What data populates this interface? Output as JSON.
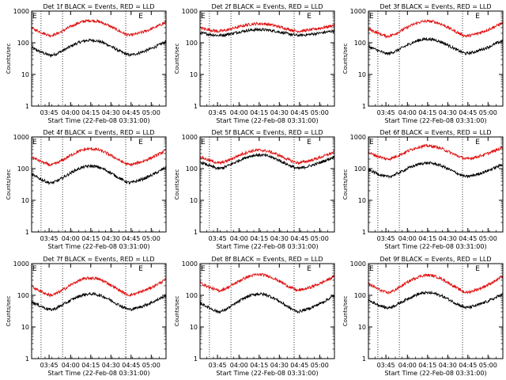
{
  "colors": {
    "events": "#000000",
    "lld": "#e01010",
    "axes": "#000000"
  },
  "chart_data": [
    {
      "type": "line",
      "title": "Det 1f BLACK = Events, RED = LLD",
      "xlabel": "Start Time (22-Feb-08 03:31:00)",
      "ylabel": "Counts/sec",
      "yscale": "log",
      "ylim": [
        1,
        1000
      ],
      "yticks": [
        "1",
        "10",
        "100",
        "1000"
      ],
      "xticks": [
        "03:45",
        "04:00",
        "04:15",
        "04:30",
        "04:45",
        "05:00"
      ],
      "xtick_minutes": [
        224,
        240,
        255,
        270,
        285,
        300
      ],
      "xlim_minutes": [
        211,
        311
      ],
      "event_lines_minutes": [
        218,
        234,
        281
      ],
      "markers": [
        {
          "label": "E",
          "minute": 211
        },
        {
          "label": "E",
          "minute": 290
        }
      ],
      "series": [
        {
          "name": "Events",
          "min": 40,
          "peak": 120,
          "end": 110
        },
        {
          "name": "LLD",
          "min": 170,
          "peak": 500,
          "end": 450
        }
      ]
    },
    {
      "type": "line",
      "title": "Det 2f BLACK = Events, RED = LLD",
      "xlabel": "Start Time (22-Feb-08 03:31:00)",
      "ylabel": "Counts/sec",
      "yscale": "log",
      "ylim": [
        1,
        1000
      ],
      "yticks": [
        "1",
        "10",
        "100",
        "1000"
      ],
      "xticks": [
        "03:45",
        "04:00",
        "04:15",
        "04:30",
        "04:45",
        "05:00"
      ],
      "xtick_minutes": [
        224,
        240,
        255,
        270,
        285,
        300
      ],
      "xlim_minutes": [
        211,
        311
      ],
      "event_lines_minutes": [
        218,
        234,
        281
      ],
      "markers": [
        {
          "label": "E",
          "minute": 211
        },
        {
          "label": "E",
          "minute": 290
        }
      ],
      "series": [
        {
          "name": "Events",
          "min": 170,
          "peak": 260,
          "end": 240
        },
        {
          "name": "LLD",
          "min": 230,
          "peak": 400,
          "end": 360
        }
      ]
    },
    {
      "type": "line",
      "title": "Det 3f BLACK = Events, RED = LLD",
      "xlabel": "Start Time (22-Feb-08 03:31:00)",
      "ylabel": "Counts/sec",
      "yscale": "log",
      "ylim": [
        1,
        1000
      ],
      "yticks": [
        "1",
        "10",
        "100",
        "1000"
      ],
      "xticks": [
        "03:45",
        "04:00",
        "04:15",
        "04:30",
        "04:45",
        "05:00"
      ],
      "xtick_minutes": [
        224,
        240,
        255,
        270,
        285,
        300
      ],
      "xlim_minutes": [
        211,
        311
      ],
      "event_lines_minutes": [
        218,
        234,
        281
      ],
      "markers": [
        {
          "label": "E",
          "minute": 211
        },
        {
          "label": "E",
          "minute": 290
        }
      ],
      "series": [
        {
          "name": "Events",
          "min": 45,
          "peak": 130,
          "end": 120
        },
        {
          "name": "LLD",
          "min": 160,
          "peak": 480,
          "end": 430
        }
      ]
    },
    {
      "type": "line",
      "title": "Det 4f BLACK = Events, RED = LLD",
      "xlabel": "Start Time (22-Feb-08 03:31:00)",
      "ylabel": "Counts/sec",
      "yscale": "log",
      "ylim": [
        1,
        1000
      ],
      "yticks": [
        "1",
        "10",
        "100",
        "1000"
      ],
      "xticks": [
        "03:45",
        "04:00",
        "04:15",
        "04:30",
        "04:45",
        "05:00"
      ],
      "xtick_minutes": [
        224,
        240,
        255,
        270,
        285,
        300
      ],
      "xlim_minutes": [
        211,
        311
      ],
      "event_lines_minutes": [
        218,
        234,
        281
      ],
      "markers": [
        {
          "label": "E",
          "minute": 211
        },
        {
          "label": "E",
          "minute": 290
        }
      ],
      "series": [
        {
          "name": "Events",
          "min": 35,
          "peak": 120,
          "end": 110
        },
        {
          "name": "LLD",
          "min": 130,
          "peak": 420,
          "end": 380
        }
      ]
    },
    {
      "type": "line",
      "title": "Det 5f BLACK = Events, RED = LLD",
      "xlabel": "Start Time (22-Feb-08 03:31:00)",
      "ylabel": "Counts/sec",
      "yscale": "log",
      "ylim": [
        1,
        1000
      ],
      "yticks": [
        "1",
        "10",
        "100",
        "1000"
      ],
      "xticks": [
        "03:45",
        "04:00",
        "04:15",
        "04:30",
        "04:45",
        "05:00"
      ],
      "xtick_minutes": [
        224,
        240,
        255,
        270,
        285,
        300
      ],
      "xlim_minutes": [
        211,
        311
      ],
      "event_lines_minutes": [
        218,
        234,
        281
      ],
      "markers": [
        {
          "label": "E",
          "minute": 211
        },
        {
          "label": "E",
          "minute": 290
        }
      ],
      "series": [
        {
          "name": "Events",
          "min": 100,
          "peak": 270,
          "end": 240
        },
        {
          "name": "LLD",
          "min": 150,
          "peak": 380,
          "end": 340
        }
      ]
    },
    {
      "type": "line",
      "title": "Det 6f BLACK = Events, RED = LLD",
      "xlabel": "Start Time (22-Feb-08 03:31:00)",
      "ylabel": "Counts/sec",
      "yscale": "log",
      "ylim": [
        1,
        1000
      ],
      "yticks": [
        "1",
        "10",
        "100",
        "1000"
      ],
      "xticks": [
        "03:45",
        "04:00",
        "04:15",
        "04:30",
        "04:45",
        "05:00"
      ],
      "xtick_minutes": [
        224,
        240,
        255,
        270,
        285,
        300
      ],
      "xlim_minutes": [
        211,
        311
      ],
      "event_lines_minutes": [
        218,
        234,
        281
      ],
      "markers": [
        {
          "label": "E",
          "minute": 211
        },
        {
          "label": "E",
          "minute": 290
        }
      ],
      "series": [
        {
          "name": "Events",
          "min": 55,
          "peak": 150,
          "end": 140
        },
        {
          "name": "LLD",
          "min": 200,
          "peak": 520,
          "end": 470
        }
      ]
    },
    {
      "type": "line",
      "title": "Det 7f BLACK = Events, RED = LLD",
      "xlabel": "Start Time (22-Feb-08 03:31:00)",
      "ylabel": "Counts/sec",
      "yscale": "log",
      "ylim": [
        1,
        1000
      ],
      "yticks": [
        "1",
        "10",
        "100",
        "1000"
      ],
      "xticks": [
        "03:45",
        "04:00",
        "04:15",
        "04:30",
        "04:45",
        "05:00"
      ],
      "xtick_minutes": [
        224,
        240,
        255,
        270,
        285,
        300
      ],
      "xlim_minutes": [
        211,
        311
      ],
      "event_lines_minutes": [
        218,
        234,
        281
      ],
      "markers": [
        {
          "label": "E",
          "minute": 211
        },
        {
          "label": "E",
          "minute": 290
        }
      ],
      "series": [
        {
          "name": "Events",
          "min": 35,
          "peak": 110,
          "end": 100
        },
        {
          "name": "LLD",
          "min": 100,
          "peak": 350,
          "end": 320
        }
      ]
    },
    {
      "type": "line",
      "title": "Det 8f BLACK = Events, RED = LLD",
      "xlabel": "Start Time (22-Feb-08 03:31:00)",
      "ylabel": "Counts/sec",
      "yscale": "log",
      "ylim": [
        1,
        1000
      ],
      "yticks": [
        "1",
        "10",
        "100",
        "1000"
      ],
      "xticks": [
        "03:45",
        "04:00",
        "04:15",
        "04:30",
        "04:45",
        "05:00"
      ],
      "xtick_minutes": [
        224,
        240,
        255,
        270,
        285,
        300
      ],
      "xlim_minutes": [
        211,
        311
      ],
      "event_lines_minutes": [
        218,
        234,
        281
      ],
      "markers": [
        {
          "label": "E",
          "minute": 211
        },
        {
          "label": "E",
          "minute": 290
        }
      ],
      "series": [
        {
          "name": "Events",
          "min": 30,
          "peak": 110,
          "end": 100
        },
        {
          "name": "LLD",
          "min": 140,
          "peak": 450,
          "end": 400
        }
      ]
    },
    {
      "type": "line",
      "title": "Det 9f BLACK = Events, RED = LLD",
      "xlabel": "Start Time (22-Feb-08 03:31:00)",
      "ylabel": "Counts/sec",
      "yscale": "log",
      "ylim": [
        1,
        1000
      ],
      "yticks": [
        "1",
        "10",
        "100",
        "1000"
      ],
      "xticks": [
        "03:45",
        "04:00",
        "04:15",
        "04:30",
        "04:45",
        "05:00"
      ],
      "xtick_minutes": [
        224,
        240,
        255,
        270,
        285,
        300
      ],
      "xlim_minutes": [
        211,
        311
      ],
      "event_lines_minutes": [
        218,
        234,
        281
      ],
      "markers": [
        {
          "label": "E",
          "minute": 211
        },
        {
          "label": "E",
          "minute": 290
        }
      ],
      "series": [
        {
          "name": "Events",
          "min": 40,
          "peak": 120,
          "end": 110
        },
        {
          "name": "LLD",
          "min": 120,
          "peak": 430,
          "end": 400
        }
      ]
    }
  ]
}
